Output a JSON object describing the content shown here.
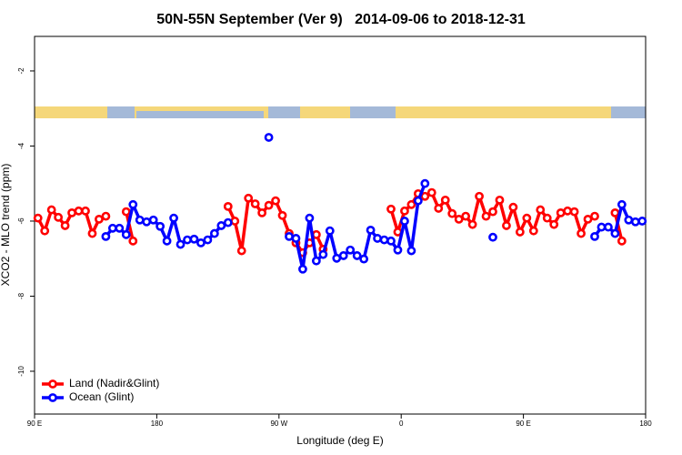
{
  "chart_data": {
    "type": "line",
    "title": "50N-55N September (Ver 9)   2014-09-06 to 2018-12-31",
    "xlabel": "Longitude (deg E)",
    "ylabel": "XCO2 - MLO trend (ppm)",
    "x": [
      92.5,
      97.5,
      102.5,
      107.5,
      112.5,
      117.5,
      122.5,
      127.5,
      132.5,
      137.5,
      142.5,
      147.5,
      152.5,
      157.5,
      162.5,
      167.5,
      172.5,
      177.5,
      182.5,
      187.5,
      192.5,
      197.5,
      202.5,
      207.5,
      212.5,
      217.5,
      222.5,
      227.5,
      232.5,
      237.5,
      242.5,
      247.5,
      252.5,
      257.5,
      262.5,
      267.5,
      272.5,
      277.5,
      282.5,
      287.5,
      292.5,
      297.5,
      302.5,
      307.5,
      312.5,
      317.5,
      322.5,
      327.5,
      332.5,
      337.5,
      342.5,
      347.5,
      352.5,
      357.5,
      362.5,
      367.5,
      372.5,
      377.5,
      382.5,
      387.5,
      392.5,
      397.5,
      402.5,
      407.5,
      412.5,
      417.5,
      422.5,
      427.5,
      432.5,
      437.5,
      442.5,
      447.5,
      452.5,
      457.5,
      462.5,
      467.5,
      472.5,
      477.5,
      482.5,
      487.5,
      492.5,
      497.5,
      502.5,
      507.5,
      512.5,
      517.5,
      522.5,
      527.5,
      532.5,
      537.5
    ],
    "series": [
      {
        "name": "Land (Nadir&Glint)",
        "color": "#ff0000",
        "values": [
          -5.92,
          -6.26,
          -5.7,
          -5.9,
          -6.12,
          -5.78,
          -5.73,
          -5.73,
          -6.33,
          -5.95,
          -5.87,
          null,
          null,
          -5.75,
          -6.53,
          null,
          null,
          null,
          null,
          null,
          null,
          null,
          null,
          null,
          null,
          null,
          null,
          null,
          -5.61,
          -6.0,
          -6.79,
          -5.39,
          -5.54,
          -5.78,
          -5.58,
          -5.46,
          -5.85,
          -6.33,
          -6.58,
          -6.84,
          -6.58,
          -6.36,
          -6.75,
          null,
          null,
          null,
          null,
          null,
          null,
          null,
          null,
          null,
          -5.68,
          -6.29,
          -5.73,
          -5.56,
          -5.27,
          -5.34,
          -5.24,
          -5.66,
          -5.44,
          -5.8,
          -5.95,
          -5.87,
          -6.09,
          -5.34,
          -5.87,
          -5.75,
          -5.44,
          -6.12,
          -5.63,
          -6.29,
          -5.92,
          -6.26,
          -5.7,
          -5.92,
          -6.09,
          -5.78,
          -5.73,
          -5.75,
          -6.33,
          -5.95,
          -5.87,
          null,
          null,
          -5.78,
          -6.53,
          null,
          null,
          null
        ]
      },
      {
        "name": "Ocean (Glint)",
        "color": "#0000ff",
        "values": [
          null,
          null,
          null,
          null,
          null,
          null,
          null,
          null,
          null,
          null,
          -6.41,
          -6.19,
          -6.19,
          -6.36,
          -5.56,
          -5.97,
          -6.02,
          -5.97,
          -6.14,
          -6.53,
          -5.92,
          -6.62,
          -6.5,
          -6.48,
          -6.58,
          -6.5,
          -6.33,
          -6.12,
          -6.04,
          null,
          null,
          null,
          null,
          null,
          -3.77,
          null,
          null,
          -6.41,
          -6.46,
          -7.28,
          -5.92,
          -7.06,
          -6.89,
          -6.26,
          -6.99,
          -6.92,
          -6.77,
          -6.92,
          -7.01,
          -6.24,
          -6.46,
          -6.5,
          -6.53,
          -6.77,
          -6.0,
          -6.79,
          -5.46,
          -5.0,
          null,
          null,
          null,
          null,
          null,
          null,
          null,
          null,
          null,
          -6.43,
          null,
          null,
          null,
          null,
          null,
          null,
          null,
          null,
          null,
          null,
          null,
          null,
          null,
          null,
          -6.41,
          -6.16,
          -6.16,
          -6.33,
          -5.56,
          -5.97,
          -6.02,
          -6.0
        ]
      }
    ],
    "xlim": [
      90,
      540
    ],
    "xticks": [
      {
        "value": 90,
        "label": "90 E"
      },
      180,
      {
        "value": 270,
        "label": "90 W"
      },
      {
        "value": 360,
        "label": "0"
      },
      {
        "value": 450,
        "label": "90 E"
      },
      {
        "value": 540,
        "label": "180"
      }
    ],
    "ylim": [
      -11.14,
      -1.08
    ],
    "yticks": [
      -2,
      -4,
      -6,
      -8,
      -10
    ],
    "legend": "bottom-left"
  }
}
